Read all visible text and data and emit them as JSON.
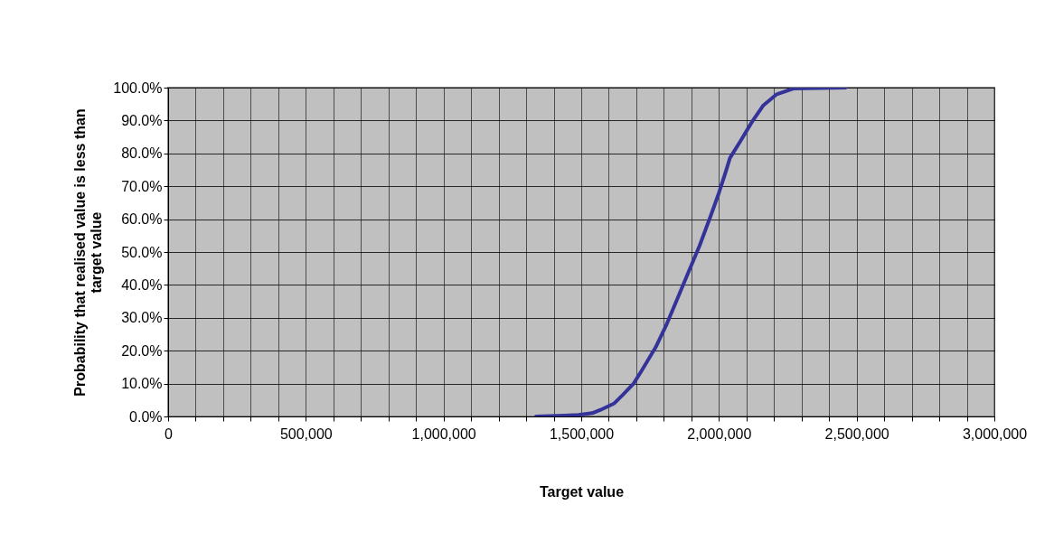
{
  "chart_data": {
    "type": "line",
    "xlabel": "Target value",
    "ylabel": "Probability that realised value is less than target value",
    "x": [
      1336000,
      1440000,
      1490000,
      1540000,
      1570000,
      1620000,
      1650000,
      1690000,
      1720000,
      1770000,
      1810000,
      1850000,
      1890000,
      1930000,
      1970000,
      2000000,
      2025000,
      2040000,
      2080000,
      2120000,
      2160000,
      2210000,
      2270000,
      2460000
    ],
    "series": [
      {
        "color": "#333399",
        "values": [
          0,
          0.3,
          0.5,
          1,
          2,
          4,
          6.5,
          10,
          14,
          21,
          28,
          36,
          44,
          52,
          61,
          68,
          74.5,
          78.6,
          84,
          89.6,
          94.5,
          98,
          99.7,
          100
        ]
      }
    ],
    "xlim": [
      0,
      3000000
    ],
    "xticks": [
      {
        "value": 0,
        "label": "0"
      },
      {
        "value": 100000,
        "label": null
      },
      {
        "value": 200000,
        "label": null
      },
      {
        "value": 300000,
        "label": null
      },
      {
        "value": 400000,
        "label": null
      },
      {
        "value": 500000,
        "label": "500,000"
      },
      {
        "value": 600000,
        "label": null
      },
      {
        "value": 700000,
        "label": null
      },
      {
        "value": 800000,
        "label": null
      },
      {
        "value": 900000,
        "label": null
      },
      {
        "value": 1000000,
        "label": "1,000,000"
      },
      {
        "value": 1100000,
        "label": null
      },
      {
        "value": 1200000,
        "label": null
      },
      {
        "value": 1300000,
        "label": null
      },
      {
        "value": 1400000,
        "label": null
      },
      {
        "value": 1500000,
        "label": "1,500,000"
      },
      {
        "value": 1600000,
        "label": null
      },
      {
        "value": 1700000,
        "label": null
      },
      {
        "value": 1800000,
        "label": null
      },
      {
        "value": 1900000,
        "label": null
      },
      {
        "value": 2000000,
        "label": "2,000,000"
      },
      {
        "value": 2100000,
        "label": null
      },
      {
        "value": 2200000,
        "label": null
      },
      {
        "value": 2300000,
        "label": null
      },
      {
        "value": 2400000,
        "label": null
      },
      {
        "value": 2500000,
        "label": "2,500,000"
      },
      {
        "value": 2600000,
        "label": null
      },
      {
        "value": 2700000,
        "label": null
      },
      {
        "value": 2800000,
        "label": null
      },
      {
        "value": 2900000,
        "label": null
      },
      {
        "value": 3000000,
        "label": "3,000,000"
      }
    ],
    "ylim": [
      0,
      100
    ],
    "yticks": [
      {
        "value": 0,
        "label": "0.0%"
      },
      {
        "value": 10,
        "label": "10.0%"
      },
      {
        "value": 20,
        "label": "20.0%"
      },
      {
        "value": 30,
        "label": "30.0%"
      },
      {
        "value": 40,
        "label": "40.0%"
      },
      {
        "value": 50,
        "label": "50.0%"
      },
      {
        "value": 60,
        "label": "60.0%"
      },
      {
        "value": 70,
        "label": "70.0%"
      },
      {
        "value": 80,
        "label": "80.0%"
      },
      {
        "value": 90,
        "label": "90.0%"
      },
      {
        "value": 100,
        "label": "100.0%"
      }
    ],
    "grid": true,
    "marker": "none",
    "line_style": "solid"
  }
}
